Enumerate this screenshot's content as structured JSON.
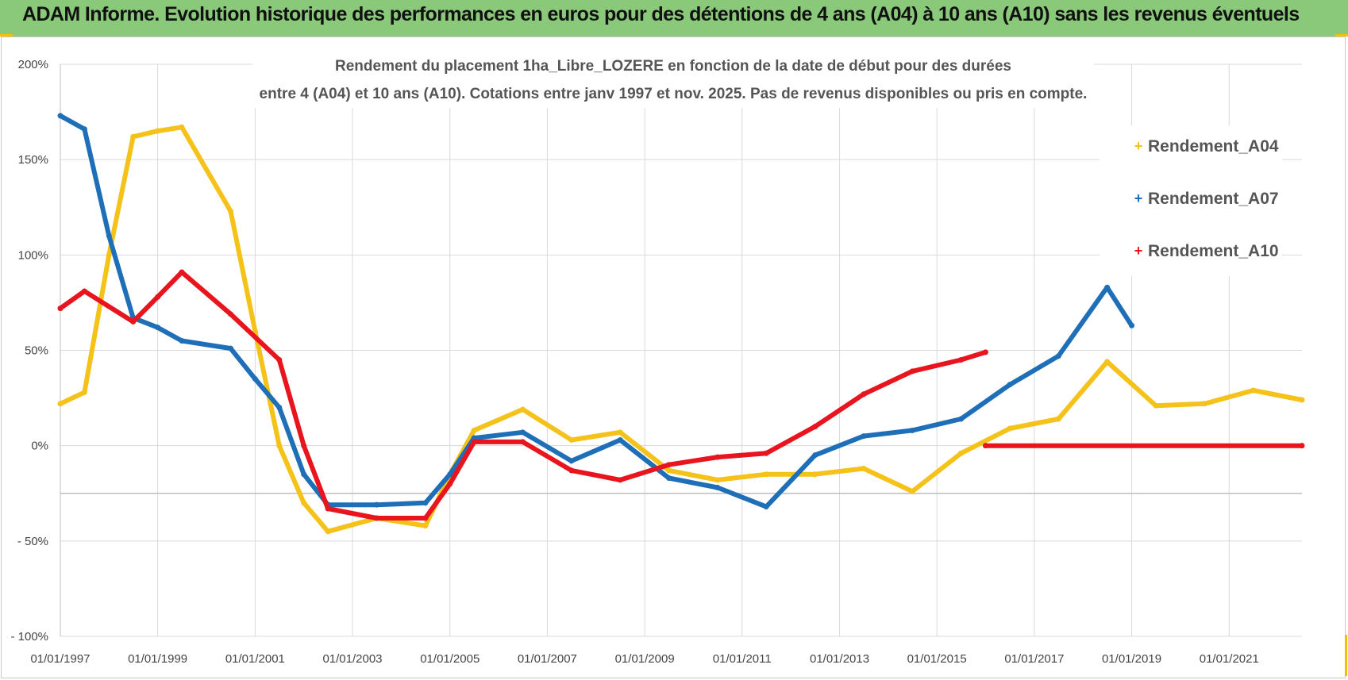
{
  "header": {
    "title": "ADAM Informe. Evolution historique des performances en euros pour des détentions de 4 ans (A04) à 10 ans (A10) sans les revenus éventuels"
  },
  "colors": {
    "header_bg": "#8ac97a",
    "a04": "#f5c21a",
    "a07": "#1f6fb8",
    "a10": "#e8141e",
    "grid": "#d9d9d9"
  },
  "chart_data": {
    "type": "line",
    "subtitle_line1": "Rendement du placement 1ha_Libre_LOZERE en fonction de la date de début pour des durées",
    "subtitle_line2": "entre 4 (A04) et 10 ans (A10).  Cotations entre janv 1997 et nov. 2025. Pas de revenus disponibles ou pris en compte.",
    "xlabel": "",
    "ylabel": "",
    "x_start": "01/01/1997",
    "x_end": "01/07/2022",
    "x_tick_labels": [
      "01/01/1997",
      "01/01/1999",
      "01/01/2001",
      "01/01/2003",
      "01/01/2005",
      "01/01/2007",
      "01/01/2009",
      "01/01/2011",
      "01/01/2013",
      "01/01/2015",
      "01/01/2017",
      "01/01/2019",
      "01/01/2021"
    ],
    "y_tick_labels": [
      "200%",
      "150%",
      "100%",
      "50%",
      "0%",
      "- 50%",
      "- 100%"
    ],
    "ylim": [
      -100,
      200
    ],
    "grid": true,
    "legend_position": "top-right",
    "series": [
      {
        "name": "Rendement_A04",
        "color": "#f5c21a",
        "points": [
          [
            "01/01/1997",
            22
          ],
          [
            "01/07/1997",
            28
          ],
          [
            "01/01/1998",
            100
          ],
          [
            "01/07/1998",
            162
          ],
          [
            "01/01/1999",
            165
          ],
          [
            "01/07/1999",
            167
          ],
          [
            "01/07/2000",
            123
          ],
          [
            "01/01/2001",
            60
          ],
          [
            "01/07/2001",
            0
          ],
          [
            "01/01/2002",
            -30
          ],
          [
            "01/07/2002",
            -45
          ],
          [
            "01/07/2003",
            -38
          ],
          [
            "01/07/2004",
            -42
          ],
          [
            "01/01/2005",
            -15
          ],
          [
            "01/07/2005",
            8
          ],
          [
            "01/07/2006",
            19
          ],
          [
            "01/07/2007",
            3
          ],
          [
            "01/07/2008",
            7
          ],
          [
            "01/07/2009",
            -13
          ],
          [
            "01/07/2010",
            -18
          ],
          [
            "01/07/2011",
            -15
          ],
          [
            "01/07/2012",
            -15
          ],
          [
            "01/07/2013",
            -12
          ],
          [
            "01/07/2014",
            -24
          ],
          [
            "01/07/2015",
            -4
          ],
          [
            "01/07/2016",
            9
          ],
          [
            "01/07/2017",
            14
          ],
          [
            "01/07/2018",
            44
          ],
          [
            "01/07/2019",
            21
          ],
          [
            "01/07/2020",
            22
          ],
          [
            "01/07/2021",
            29
          ],
          [
            "01/07/2022",
            24
          ]
        ]
      },
      {
        "name": "Rendement_A07",
        "color": "#1f6fb8",
        "points": [
          [
            "01/01/1997",
            173
          ],
          [
            "01/07/1997",
            166
          ],
          [
            "01/01/1998",
            110
          ],
          [
            "01/07/1998",
            67
          ],
          [
            "01/01/1999",
            62
          ],
          [
            "01/07/1999",
            55
          ],
          [
            "01/07/2000",
            51
          ],
          [
            "01/01/2001",
            35
          ],
          [
            "01/07/2001",
            20
          ],
          [
            "01/01/2002",
            -15
          ],
          [
            "01/07/2002",
            -31
          ],
          [
            "01/07/2003",
            -31
          ],
          [
            "01/07/2004",
            -30
          ],
          [
            "01/01/2005",
            -15
          ],
          [
            "01/07/2005",
            4
          ],
          [
            "01/07/2006",
            7
          ],
          [
            "01/07/2007",
            -8
          ],
          [
            "01/07/2008",
            3
          ],
          [
            "01/07/2009",
            -17
          ],
          [
            "01/07/2010",
            -22
          ],
          [
            "01/07/2011",
            -32
          ],
          [
            "01/07/2012",
            -5
          ],
          [
            "01/07/2013",
            5
          ],
          [
            "01/07/2014",
            8
          ],
          [
            "01/07/2015",
            14
          ],
          [
            "01/07/2016",
            32
          ],
          [
            "01/07/2017",
            47
          ],
          [
            "01/07/2018",
            83
          ],
          [
            "01/01/2019",
            63
          ]
        ]
      },
      {
        "name": "Rendement_A10",
        "color": "#e8141e",
        "points": [
          [
            "01/01/1997",
            72
          ],
          [
            "01/07/1997",
            81
          ],
          [
            "01/07/1998",
            65
          ],
          [
            "01/01/1999",
            78
          ],
          [
            "01/07/1999",
            91
          ],
          [
            "01/07/2000",
            69
          ],
          [
            "01/07/2001",
            45
          ],
          [
            "01/01/2002",
            0
          ],
          [
            "01/07/2002",
            -33
          ],
          [
            "01/07/2003",
            -38
          ],
          [
            "01/07/2004",
            -38
          ],
          [
            "01/01/2005",
            -20
          ],
          [
            "01/07/2005",
            2
          ],
          [
            "01/07/2006",
            2
          ],
          [
            "01/07/2007",
            -13
          ],
          [
            "01/07/2008",
            -18
          ],
          [
            "01/07/2009",
            -10
          ],
          [
            "01/07/2010",
            -6
          ],
          [
            "01/07/2011",
            -4
          ],
          [
            "01/07/2012",
            10
          ],
          [
            "01/07/2013",
            27
          ],
          [
            "01/07/2014",
            39
          ],
          [
            "01/07/2015",
            45
          ],
          [
            "01/01/2016",
            49
          ],
          [
            "01/01/2016",
            0
          ],
          [
            "01/07/2022",
            0
          ]
        ],
        "break_after_index": 23
      }
    ]
  }
}
